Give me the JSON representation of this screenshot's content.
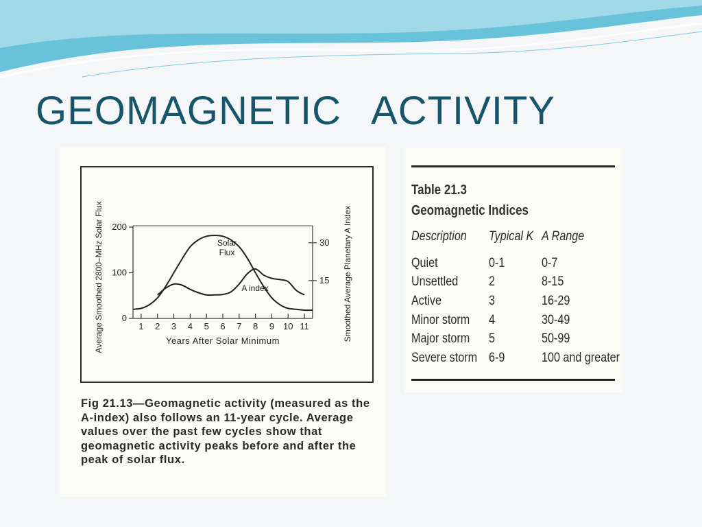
{
  "slide": {
    "title": "GEOMAGNETIC  ACTIVITY"
  },
  "colors": {
    "title": "#17556b",
    "wave_dark": "#4fb9d3",
    "wave_light": "#a8dcea"
  },
  "figure": {
    "caption": "Fig 21.13—Geomagnetic activity (measured as the A-index) also follows an 11-year cycle. Average values over the past few cycles show that geomagnetic activity peaks before and after the peak of solar flux.",
    "chart_data": {
      "type": "line",
      "xlabel": "Years After Solar Minimum",
      "ylabel_left": "Average Smoothed 2800–MHz Solar Flux",
      "ylabel_right": "Smoothed Average Planetary A Index",
      "x_ticks": [
        "1",
        "2",
        "3",
        "4",
        "5",
        "6",
        "7",
        "8",
        "9",
        "10",
        "11"
      ],
      "y_left_ticks": [
        "0",
        "100",
        "200"
      ],
      "y_right_ticks": [
        "15",
        "30"
      ],
      "xlim": [
        0.5,
        11.5
      ],
      "ylim_left": [
        0,
        200
      ],
      "ylim_right": [
        0,
        36.2
      ],
      "grid": false,
      "series": [
        {
          "name": "Solar Flux",
          "label": "Solar\nFlux",
          "axis": "left",
          "x": [
            0.5,
            1.0,
            1.5,
            2.0,
            2.5,
            3.0,
            3.5,
            4.0,
            4.5,
            5.0,
            5.5,
            6.0,
            6.5,
            7.0,
            7.5,
            8.0,
            8.5,
            9.0,
            9.5,
            10.0,
            10.5,
            11.0,
            11.5
          ],
          "values": [
            20,
            22,
            30,
            45,
            70,
            100,
            130,
            157,
            172,
            180,
            182,
            180,
            172,
            157,
            132,
            100,
            70,
            45,
            30,
            22,
            20,
            18,
            18
          ]
        },
        {
          "name": "A index",
          "label": "A index",
          "axis": "right",
          "x": [
            2.0,
            2.5,
            3.0,
            3.5,
            4.0,
            4.5,
            5.0,
            5.5,
            6.0,
            6.5,
            7.0,
            7.5,
            8.0,
            8.5,
            9.0,
            9.5,
            10.0,
            10.5,
            11.0
          ],
          "values": [
            9.3,
            12.0,
            13.6,
            13.2,
            11.5,
            10.2,
            9.3,
            9.3,
            9.5,
            10.5,
            13.6,
            17.7,
            19.6,
            17.2,
            15.9,
            15.4,
            14.6,
            11.1,
            9.3
          ]
        }
      ]
    }
  },
  "table": {
    "number": "Table 21.3",
    "title": "Geomagnetic Indices",
    "headers": [
      "Description",
      "Typical K",
      "A Range"
    ],
    "rows": [
      [
        "Quiet",
        "0-1",
        "0-7"
      ],
      [
        "Unsettled",
        "2",
        "8-15"
      ],
      [
        "Active",
        "3",
        "16-29"
      ],
      [
        "Minor storm",
        "4",
        "30-49"
      ],
      [
        "Major storm",
        "5",
        "50-99"
      ],
      [
        "Severe storm",
        "6-9",
        "100 and greater"
      ]
    ]
  }
}
